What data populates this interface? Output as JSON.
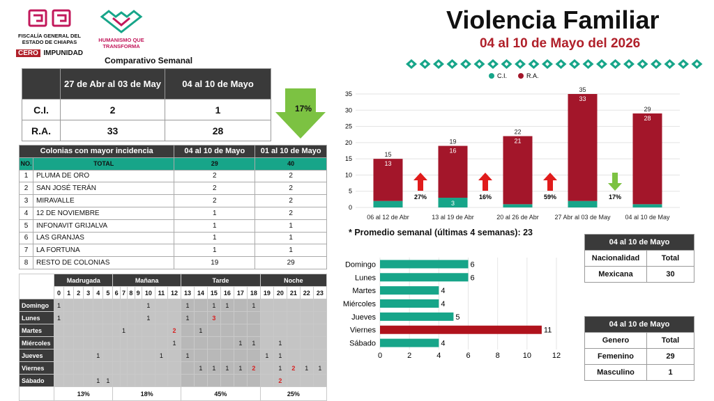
{
  "header": {
    "logo_name": "FISCALÍA GENERAL DEL ESTADO DE CHIAPAS",
    "logo_tag_1": "CERO",
    "logo_tag_2": "IMPUNIDAD",
    "logo2_name": "HUMANISMO QUE TRANSFORMA",
    "title": "Violencia Familiar",
    "subtitle": "04 al 10 de Mayo del 2026",
    "comparison_title": "Comparativo Semanal"
  },
  "colors": {
    "ci": "#17a589",
    "ra": "#a3162a",
    "dark": "#3a3a3a",
    "arrow_up": "#e01b1b",
    "arrow_down": "#7cc242",
    "friday": "#b0121c"
  },
  "comparison": {
    "col1": "27 de Abr al 03 de May",
    "col2": "04 al 10 de Mayo",
    "rows": [
      {
        "label": "C.I.",
        "v1": "2",
        "v2": "1"
      },
      {
        "label": "R.A.",
        "v1": "33",
        "v2": "28"
      }
    ],
    "change": "17%"
  },
  "colonias": {
    "h_name": "Colonias con mayor incidencia",
    "h_col1": "04 al 10 de Mayo",
    "h_col2": "01 al 10 de Mayo",
    "h_no": "NO.",
    "h_total": "TOTAL",
    "total1": "29",
    "total2": "40",
    "rows": [
      {
        "no": "1",
        "name": "PLUMA DE ORO",
        "v1": "2",
        "v2": "2"
      },
      {
        "no": "2",
        "name": "SAN JOSÉ TERÁN",
        "v1": "2",
        "v2": "2"
      },
      {
        "no": "3",
        "name": "MIRAVALLE",
        "v1": "2",
        "v2": "2"
      },
      {
        "no": "4",
        "name": "12 DE NOVIEMBRE",
        "v1": "1",
        "v2": "2"
      },
      {
        "no": "5",
        "name": "INFONAVIT GRIJALVA",
        "v1": "1",
        "v2": "1"
      },
      {
        "no": "6",
        "name": "LAS GRANJAS",
        "v1": "1",
        "v2": "1"
      },
      {
        "no": "7",
        "name": "LA FORTUNA",
        "v1": "1",
        "v2": "1"
      },
      {
        "no": "8",
        "name": "RESTO DE COLONIAS",
        "v1": "19",
        "v2": "29"
      }
    ]
  },
  "heatmap": {
    "periods": [
      "Madrugada",
      "Mañana",
      "Tarde",
      "Noche"
    ],
    "hours": [
      "0",
      "1",
      "2",
      "3",
      "4",
      "5",
      "6",
      "7",
      "8",
      "9",
      "10",
      "11",
      "12",
      "13",
      "14",
      "15",
      "16",
      "17",
      "18",
      "19",
      "20",
      "21",
      "22",
      "23"
    ],
    "days": [
      "Domingo",
      "Lunes",
      "Martes",
      "Miércoles",
      "Jueves",
      "Viernes",
      "Sábado"
    ],
    "cells": [
      {
        "day": 0,
        "hour": 0,
        "value": "1"
      },
      {
        "day": 0,
        "hour": 10,
        "value": "1"
      },
      {
        "day": 0,
        "hour": 13,
        "value": "1"
      },
      {
        "day": 0,
        "hour": 15,
        "value": "1"
      },
      {
        "day": 0,
        "hour": 16,
        "value": "1"
      },
      {
        "day": 0,
        "hour": 18,
        "value": "1"
      },
      {
        "day": 1,
        "hour": 0,
        "value": "1"
      },
      {
        "day": 1,
        "hour": 10,
        "value": "1"
      },
      {
        "day": 1,
        "hour": 13,
        "value": "1"
      },
      {
        "day": 1,
        "hour": 15,
        "value": "3",
        "red": true
      },
      {
        "day": 2,
        "hour": 7,
        "value": "1"
      },
      {
        "day": 2,
        "hour": 12,
        "value": "2",
        "red": true
      },
      {
        "day": 2,
        "hour": 14,
        "value": "1"
      },
      {
        "day": 3,
        "hour": 12,
        "value": "1"
      },
      {
        "day": 3,
        "hour": 17,
        "value": "1"
      },
      {
        "day": 3,
        "hour": 18,
        "value": "1"
      },
      {
        "day": 3,
        "hour": 20,
        "value": "1"
      },
      {
        "day": 4,
        "hour": 4,
        "value": "1"
      },
      {
        "day": 4,
        "hour": 11,
        "value": "1"
      },
      {
        "day": 4,
        "hour": 13,
        "value": "1"
      },
      {
        "day": 4,
        "hour": 19,
        "value": "1"
      },
      {
        "day": 4,
        "hour": 20,
        "value": "1"
      },
      {
        "day": 5,
        "hour": 14,
        "value": "1"
      },
      {
        "day": 5,
        "hour": 15,
        "value": "1"
      },
      {
        "day": 5,
        "hour": 16,
        "value": "1"
      },
      {
        "day": 5,
        "hour": 17,
        "value": "1"
      },
      {
        "day": 5,
        "hour": 18,
        "value": "2",
        "red": true
      },
      {
        "day": 5,
        "hour": 20,
        "value": "1"
      },
      {
        "day": 5,
        "hour": 21,
        "value": "2",
        "red": true
      },
      {
        "day": 5,
        "hour": 22,
        "value": "1"
      },
      {
        "day": 5,
        "hour": 23,
        "value": "1"
      },
      {
        "day": 6,
        "hour": 4,
        "value": "1"
      },
      {
        "day": 6,
        "hour": 5,
        "value": "1"
      },
      {
        "day": 6,
        "hour": 20,
        "value": "2",
        "red": true
      }
    ],
    "period_pct": [
      "13%",
      "18%",
      "45%",
      "25%"
    ]
  },
  "chart_data": [
    {
      "type": "bar",
      "stacked": true,
      "categories": [
        "06 al 12 de Abr",
        "13 al 19 de Abr",
        "20 al 26 de Abr",
        "27 Abr al 03 de May",
        "04 al 10 de May"
      ],
      "series": [
        {
          "name": "C.I.",
          "values": [
            2,
            3,
            1,
            2,
            1
          ]
        },
        {
          "name": "R.A.",
          "values": [
            13,
            16,
            21,
            33,
            28
          ]
        }
      ],
      "totals": [
        15,
        19,
        22,
        35,
        29
      ],
      "changes": [
        {
          "label": "27%",
          "direction": "up"
        },
        {
          "label": "16%",
          "direction": "up"
        },
        {
          "label": "59%",
          "direction": "up"
        },
        {
          "label": "17%",
          "direction": "down"
        }
      ],
      "ylim": [
        0,
        35
      ],
      "yticks": [
        0,
        5,
        10,
        15,
        20,
        25,
        30,
        35
      ],
      "grid": true,
      "legend": "top",
      "note": "* Promedio semanal (últimas 4 semanas): 23"
    },
    {
      "type": "bar",
      "orientation": "horizontal",
      "categories": [
        "Domingo",
        "Lunes",
        "Martes",
        "Miércoles",
        "Jueves",
        "Viernes",
        "Sábado"
      ],
      "values": [
        6,
        6,
        4,
        4,
        5,
        11,
        4
      ],
      "highlight": "Viernes",
      "xlim": [
        0,
        12
      ],
      "xticks": [
        0,
        2,
        4,
        6,
        8,
        10,
        12
      ],
      "grid": true
    }
  ],
  "nacionalidad": {
    "period": "04 al 10 de Mayo",
    "h_label": "Nacionalidad",
    "h_total": "Total",
    "rows": [
      {
        "label": "Mexicana",
        "value": "30"
      }
    ]
  },
  "genero": {
    "period": "04 al 10 de Mayo",
    "h_label": "Genero",
    "h_total": "Total",
    "rows": [
      {
        "label": "Femenino",
        "value": "29"
      },
      {
        "label": "Masculino",
        "value": "1"
      }
    ]
  }
}
